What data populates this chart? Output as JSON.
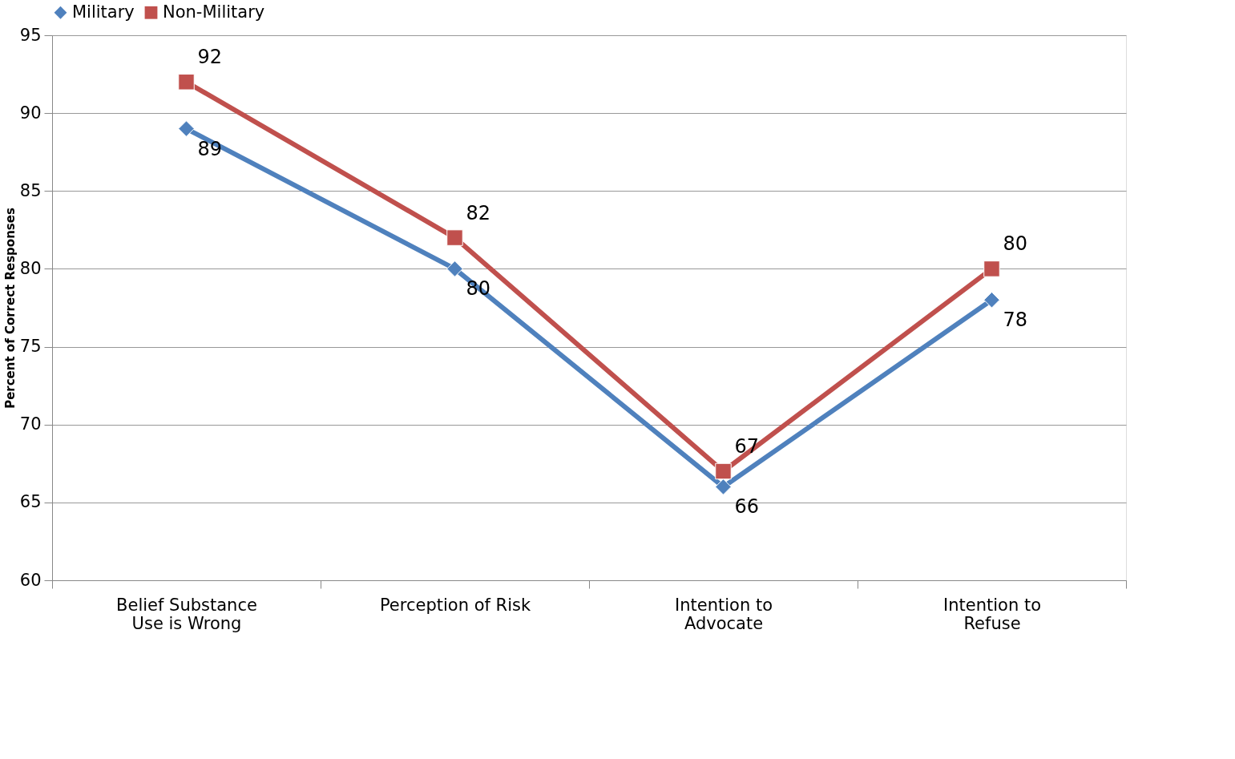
{
  "chart_data": {
    "type": "line",
    "ylabel": "Percent of Correct Responses",
    "categories": [
      "Belief Substance Use is Wrong",
      "Perception of Risk",
      "Intention to Advocate",
      "Intention to Refuse"
    ],
    "series": [
      {
        "name": "Military",
        "color": "#4f81bd",
        "marker": "diamond",
        "values": [
          89,
          80,
          66,
          78
        ]
      },
      {
        "name": "Non-Military",
        "color": "#c0504d",
        "marker": "square",
        "values": [
          92,
          82,
          67,
          80
        ]
      }
    ],
    "ylim": [
      60,
      95
    ],
    "yticks": [
      60,
      65,
      70,
      75,
      80,
      85,
      90,
      95
    ],
    "grid": "y",
    "legend": "top",
    "data_labels": true,
    "line_style": "solid"
  }
}
